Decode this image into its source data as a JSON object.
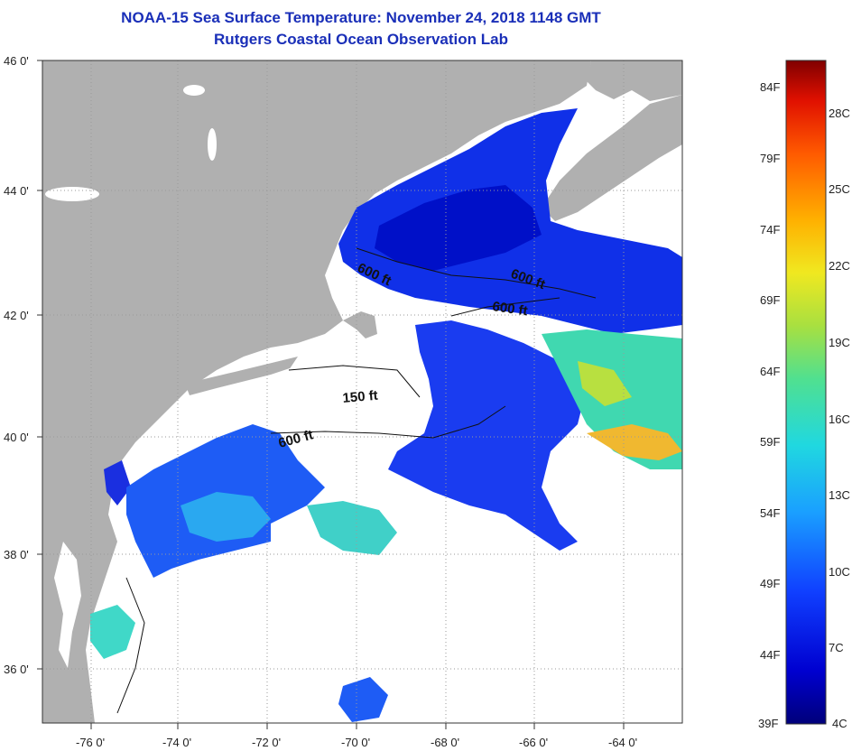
{
  "title": "NOAA-15 Sea Surface Temperature:  November 24, 2018 1148 GMT",
  "subtitle": "Rutgers Coastal Ocean Observation Lab",
  "axes": {
    "lat_labels": [
      "46 0'",
      "44 0'",
      "42 0'",
      "40 0'",
      "38 0'",
      "36 0'"
    ],
    "lon_labels": [
      "-76 0'",
      "-74 0'",
      "-72 0'",
      "-70 0'",
      "-68 0'",
      "-66 0'",
      "-64 0'"
    ]
  },
  "contours": [
    "600 ft",
    "600 ft",
    "600 ft",
    "150 ft",
    "600 ft"
  ],
  "colorbar": {
    "fahrenheit": [
      "84F",
      "79F",
      "74F",
      "69F",
      "64F",
      "59F",
      "54F",
      "49F",
      "44F",
      "39F"
    ],
    "celsius": [
      "28C",
      "25C",
      "22C",
      "19C",
      "16C",
      "13C",
      "10C",
      "7C",
      "4C"
    ]
  },
  "colors": {
    "land": "#b0b0b0",
    "title": "#1a2fb8",
    "no_data": "#ffffff"
  }
}
